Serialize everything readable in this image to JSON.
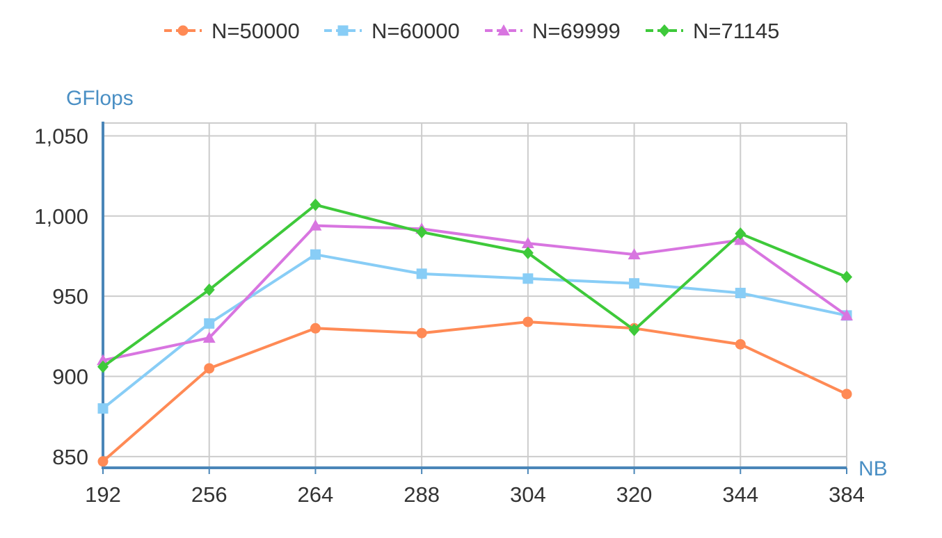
{
  "chart_data": {
    "type": "line",
    "title": "",
    "xlabel": "NB",
    "ylabel": "GFlops",
    "categories": [
      "192",
      "256",
      "264",
      "288",
      "304",
      "320",
      "344",
      "384"
    ],
    "ylim": [
      843,
      1058
    ],
    "yticks": [
      850,
      900,
      950,
      1000,
      1050
    ],
    "ytick_labels": [
      "850",
      "900",
      "950",
      "1,000",
      "1,050"
    ],
    "grid": true,
    "legend_position": "top",
    "series": [
      {
        "name": "N=50000",
        "color": "#ff8a55",
        "marker": "circle",
        "values": [
          847,
          905,
          930,
          927,
          934,
          930,
          920,
          889
        ]
      },
      {
        "name": "N=60000",
        "color": "#88cdf6",
        "marker": "square",
        "values": [
          880,
          933,
          976,
          964,
          961,
          958,
          952,
          938
        ]
      },
      {
        "name": "N=69999",
        "color": "#d875e0",
        "marker": "triangle",
        "values": [
          910,
          924,
          994,
          992,
          983,
          976,
          985,
          938
        ]
      },
      {
        "name": "N=71145",
        "color": "#3ec93a",
        "marker": "diamond",
        "values": [
          906,
          954,
          1007,
          990,
          977,
          929,
          989,
          962
        ]
      }
    ]
  }
}
